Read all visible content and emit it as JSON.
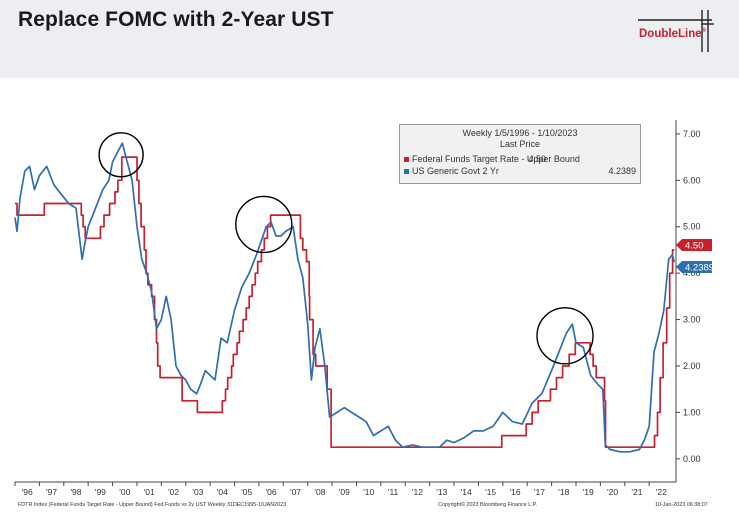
{
  "header": {
    "title": "Replace FOMC with 2-Year UST",
    "logo_text": "DoubleLine",
    "logo_mark": "®"
  },
  "legend": {
    "line1": "Weekly 1/5/1996 - 1/10/2023",
    "line2": "Last Price",
    "fed_label": "Federal Funds Target Rate - Upper Bound",
    "fed_value": "4.50",
    "ust_label": "US Generic Govt 2 Yr",
    "ust_value": "4.2389"
  },
  "footer": {
    "left": "FDTR Index (Federal Funds Target Rate - Upper Bound) Fed Funds vs 2y UST  Weekly 31DEC1995-10JAN2023",
    "center": "Copyright© 2023 Bloomberg Finance L.P.",
    "right": "10-Jan-2023 06:38:07"
  },
  "colors": {
    "fed": "#c8202f",
    "ust": "#2f6fb0",
    "header_bg": "#eceef2"
  },
  "chart_data": {
    "type": "line",
    "title": "",
    "xlabel": "",
    "ylabel": "",
    "xlim": [
      1996.0,
      2023.1
    ],
    "ylim": [
      -0.5,
      7.3
    ],
    "yticks": [
      "0.00",
      "1.00",
      "2.00",
      "3.00",
      "4.00",
      "5.00",
      "6.00",
      "7.00"
    ],
    "ytick_values": [
      0,
      1,
      2,
      3,
      4,
      5,
      6,
      7
    ],
    "xticks": [
      "'96",
      "'97",
      "'98",
      "'99",
      "'00",
      "'01",
      "'02",
      "'03",
      "'04",
      "'05",
      "'06",
      "'07",
      "'08",
      "'09",
      "'10",
      "'11",
      "'12",
      "'13",
      "'14",
      "'15",
      "'16",
      "'17",
      "'18",
      "'19",
      "'20",
      "'21",
      "'22"
    ],
    "last_value_labels": [
      {
        "series": "fed",
        "text": "4.50"
      },
      {
        "series": "ust",
        "text": "4.2389"
      }
    ],
    "annotations": [
      "circle-2000-peak",
      "circle-2006-peak",
      "circle-2018-peak"
    ],
    "series": [
      {
        "name": "Federal Funds Target Rate - Upper Bound",
        "color": "#c8202f",
        "step": true,
        "x": [
          1996.0,
          1996.08,
          1997.2,
          1998.72,
          1998.79,
          1998.88,
          1999.5,
          1999.65,
          1999.88,
          2000.1,
          2000.22,
          2000.38,
          2001.0,
          2001.08,
          2001.17,
          2001.3,
          2001.37,
          2001.45,
          2001.6,
          2001.72,
          2001.8,
          2001.85,
          2001.95,
          2002.85,
          2003.48,
          2004.5,
          2004.63,
          2004.72,
          2004.88,
          2004.95,
          2005.1,
          2005.2,
          2005.35,
          2005.48,
          2005.6,
          2005.72,
          2005.85,
          2005.95,
          2006.1,
          2006.22,
          2006.35,
          2006.48,
          2007.7,
          2007.8,
          2007.95,
          2008.06,
          2008.08,
          2008.22,
          2008.33,
          2008.8,
          2008.96,
          2015.96,
          2016.96,
          2017.2,
          2017.45,
          2017.95,
          2018.2,
          2018.45,
          2018.72,
          2018.97,
          2019.58,
          2019.7,
          2019.83,
          2020.17,
          2020.21,
          2022.22,
          2022.34,
          2022.45,
          2022.57,
          2022.72,
          2022.84,
          2022.96,
          2023.03
        ],
        "values": [
          5.5,
          5.25,
          5.5,
          5.25,
          5.0,
          4.75,
          5.0,
          5.25,
          5.5,
          5.75,
          6.0,
          6.5,
          6.0,
          5.5,
          5.0,
          4.5,
          4.0,
          3.75,
          3.5,
          3.0,
          2.5,
          2.0,
          1.75,
          1.25,
          1.0,
          1.25,
          1.5,
          1.75,
          2.0,
          2.25,
          2.5,
          2.75,
          3.0,
          3.25,
          3.5,
          3.75,
          4.0,
          4.25,
          4.5,
          4.75,
          5.0,
          5.25,
          4.75,
          4.5,
          4.25,
          3.5,
          3.0,
          2.25,
          2.0,
          1.5,
          0.25,
          0.5,
          0.75,
          1.0,
          1.25,
          1.5,
          1.75,
          2.0,
          2.25,
          2.5,
          2.25,
          2.0,
          1.75,
          1.25,
          0.25,
          0.5,
          1.0,
          1.75,
          2.5,
          3.25,
          4.0,
          4.5,
          4.5
        ]
      },
      {
        "name": "US Generic Govt 2 Yr",
        "color": "#2f6fb0",
        "step": false,
        "x": [
          1996.0,
          1996.08,
          1996.2,
          1996.4,
          1996.6,
          1996.8,
          1997.0,
          1997.3,
          1997.6,
          1997.9,
          1998.2,
          1998.5,
          1998.75,
          1998.85,
          1999.0,
          1999.3,
          1999.6,
          1999.85,
          2000.0,
          2000.2,
          2000.4,
          2000.6,
          2000.8,
          2001.0,
          2001.2,
          2001.4,
          2001.6,
          2001.8,
          2002.0,
          2002.2,
          2002.4,
          2002.6,
          2002.8,
          2003.0,
          2003.2,
          2003.45,
          2003.6,
          2003.8,
          2004.0,
          2004.2,
          2004.45,
          2004.7,
          2005.0,
          2005.3,
          2005.6,
          2005.9,
          2006.1,
          2006.3,
          2006.5,
          2006.7,
          2006.9,
          2007.1,
          2007.4,
          2007.6,
          2007.8,
          2008.0,
          2008.15,
          2008.3,
          2008.5,
          2008.7,
          2008.9,
          2009.2,
          2009.5,
          2009.8,
          2010.1,
          2010.4,
          2010.7,
          2011.0,
          2011.3,
          2011.6,
          2011.9,
          2012.3,
          2012.7,
          2013.0,
          2013.4,
          2013.7,
          2014.0,
          2014.4,
          2014.8,
          2015.2,
          2015.6,
          2016.0,
          2016.4,
          2016.8,
          2017.2,
          2017.6,
          2018.0,
          2018.3,
          2018.6,
          2018.85,
          2019.0,
          2019.3,
          2019.6,
          2019.9,
          2020.1,
          2020.2,
          2020.4,
          2020.8,
          2021.2,
          2021.6,
          2021.8,
          2022.0,
          2022.2,
          2022.4,
          2022.6,
          2022.8,
          2022.95,
          2023.03
        ],
        "values": [
          5.2,
          4.9,
          5.6,
          6.2,
          6.3,
          5.8,
          6.1,
          6.3,
          5.9,
          5.7,
          5.5,
          5.4,
          4.3,
          4.6,
          5.0,
          5.4,
          5.8,
          6.0,
          6.4,
          6.6,
          6.8,
          6.4,
          6.0,
          5.0,
          4.3,
          4.0,
          3.6,
          2.8,
          3.0,
          3.5,
          3.0,
          2.0,
          1.8,
          1.7,
          1.5,
          1.4,
          1.6,
          1.9,
          1.8,
          1.7,
          2.6,
          2.5,
          3.2,
          3.7,
          4.0,
          4.4,
          4.7,
          5.0,
          5.1,
          4.8,
          4.8,
          4.9,
          5.0,
          4.3,
          3.9,
          2.9,
          1.7,
          2.4,
          2.8,
          2.0,
          0.9,
          1.0,
          1.1,
          1.0,
          0.9,
          0.8,
          0.5,
          0.6,
          0.7,
          0.4,
          0.25,
          0.3,
          0.25,
          0.25,
          0.25,
          0.4,
          0.35,
          0.45,
          0.6,
          0.6,
          0.7,
          1.0,
          0.8,
          0.75,
          1.2,
          1.4,
          1.9,
          2.3,
          2.7,
          2.9,
          2.5,
          2.4,
          1.8,
          1.6,
          1.5,
          0.3,
          0.2,
          0.15,
          0.15,
          0.2,
          0.4,
          0.7,
          2.3,
          2.7,
          3.2,
          4.3,
          4.4,
          4.24
        ]
      }
    ]
  }
}
